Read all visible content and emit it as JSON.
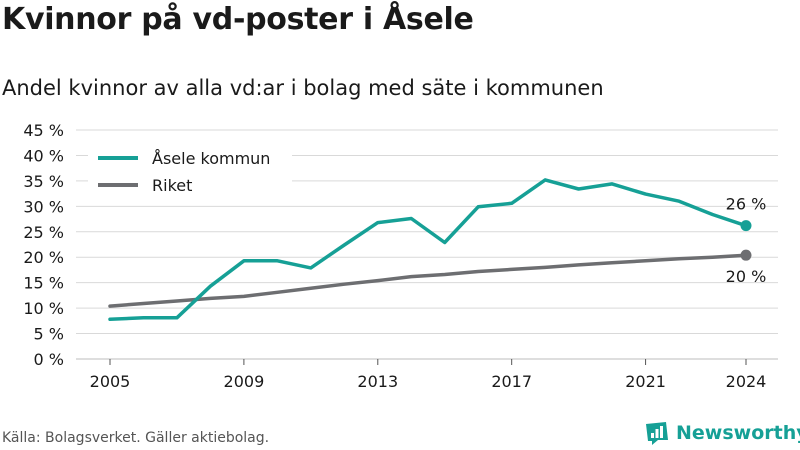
{
  "header": {
    "title": "Kvinnor på vd-poster i Åsele",
    "subtitle": "Andel kvinnor av alla vd:ar i bolag med säte i kommunen"
  },
  "footer": {
    "source": "Källa: Bolagsverket. Gäller aktiebolag.",
    "brand": "Newsworthy"
  },
  "colors": {
    "accent": "#16a096",
    "national": "#6d6e71",
    "grid": "#d9d9d9"
  },
  "chart_data": {
    "type": "line",
    "title": "Kvinnor på vd-poster i Åsele",
    "subtitle": "Andel kvinnor av alla vd:ar i bolag med säte i kommunen",
    "xlabel": "",
    "ylabel": "",
    "ylim": [
      0,
      45
    ],
    "yticks": [
      0,
      5,
      10,
      15,
      20,
      25,
      30,
      35,
      40,
      45
    ],
    "ytick_labels": [
      "0 %",
      "5 %",
      "10 %",
      "15 %",
      "20 %",
      "25 %",
      "30 %",
      "35 %",
      "40 %",
      "45 %"
    ],
    "xlim": [
      2005,
      2024
    ],
    "xticks": [
      2005,
      2009,
      2013,
      2017,
      2021,
      2024
    ],
    "xtick_labels": [
      "2005",
      "2009",
      "2013",
      "2017",
      "2021",
      "2024"
    ],
    "grid": true,
    "legend_position": "top-left",
    "x": [
      2005,
      2006,
      2007,
      2008,
      2009,
      2010,
      2011,
      2012,
      2013,
      2014,
      2015,
      2016,
      2017,
      2018,
      2019,
      2020,
      2021,
      2022,
      2023,
      2024
    ],
    "series": [
      {
        "name": "Åsele kommun",
        "color": "#16a096",
        "values": [
          7.8,
          8.1,
          8.1,
          14.3,
          19.3,
          19.3,
          17.9,
          22.4,
          26.8,
          27.6,
          22.9,
          29.9,
          30.6,
          35.2,
          33.4,
          34.4,
          32.4,
          31.0,
          28.4,
          26.2
        ],
        "end_label": "26 %"
      },
      {
        "name": "Riket",
        "color": "#6d6e71",
        "values": [
          10.4,
          10.9,
          11.4,
          11.9,
          12.3,
          13.1,
          13.9,
          14.7,
          15.4,
          16.2,
          16.6,
          17.2,
          17.6,
          18.0,
          18.5,
          18.9,
          19.3,
          19.7,
          20.0,
          20.4
        ],
        "end_label": "20 %"
      }
    ]
  }
}
